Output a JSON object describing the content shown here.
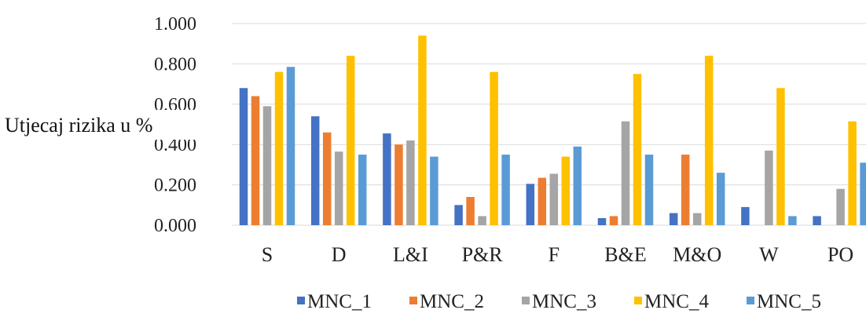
{
  "chart_data": {
    "type": "bar",
    "title": "",
    "xlabel": "",
    "ylabel": "Utjecaj rizika u %",
    "ylim": [
      0,
      1.0
    ],
    "yticks": [
      "0.000",
      "0.200",
      "0.400",
      "0.600",
      "0.800",
      "1.000"
    ],
    "grid": "horizontal",
    "legend_position": "bottom",
    "categories": [
      "S",
      "D",
      "L&I",
      "P&R",
      "F",
      "B&E",
      "M&O",
      "W",
      "PO"
    ],
    "series": [
      {
        "name": "MNC_1",
        "color": "#4472C4",
        "values": [
          0.68,
          0.54,
          0.455,
          0.1,
          0.205,
          0.035,
          0.06,
          0.09,
          0.045
        ]
      },
      {
        "name": "MNC_2",
        "color": "#ED7D31",
        "values": [
          0.64,
          0.46,
          0.4,
          0.14,
          0.235,
          0.045,
          0.35,
          0.0,
          0.0
        ]
      },
      {
        "name": "MNC_3",
        "color": "#A5A5A5",
        "values": [
          0.59,
          0.365,
          0.42,
          0.045,
          0.255,
          0.515,
          0.06,
          0.37,
          0.18
        ]
      },
      {
        "name": "MNC_4",
        "color": "#FFC000",
        "values": [
          0.76,
          0.84,
          0.94,
          0.76,
          0.34,
          0.75,
          0.84,
          0.68,
          0.515
        ]
      },
      {
        "name": "MNC_5",
        "color": "#5B9BD5",
        "values": [
          0.785,
          0.35,
          0.34,
          0.35,
          0.39,
          0.35,
          0.26,
          0.045,
          0.31
        ]
      }
    ]
  }
}
